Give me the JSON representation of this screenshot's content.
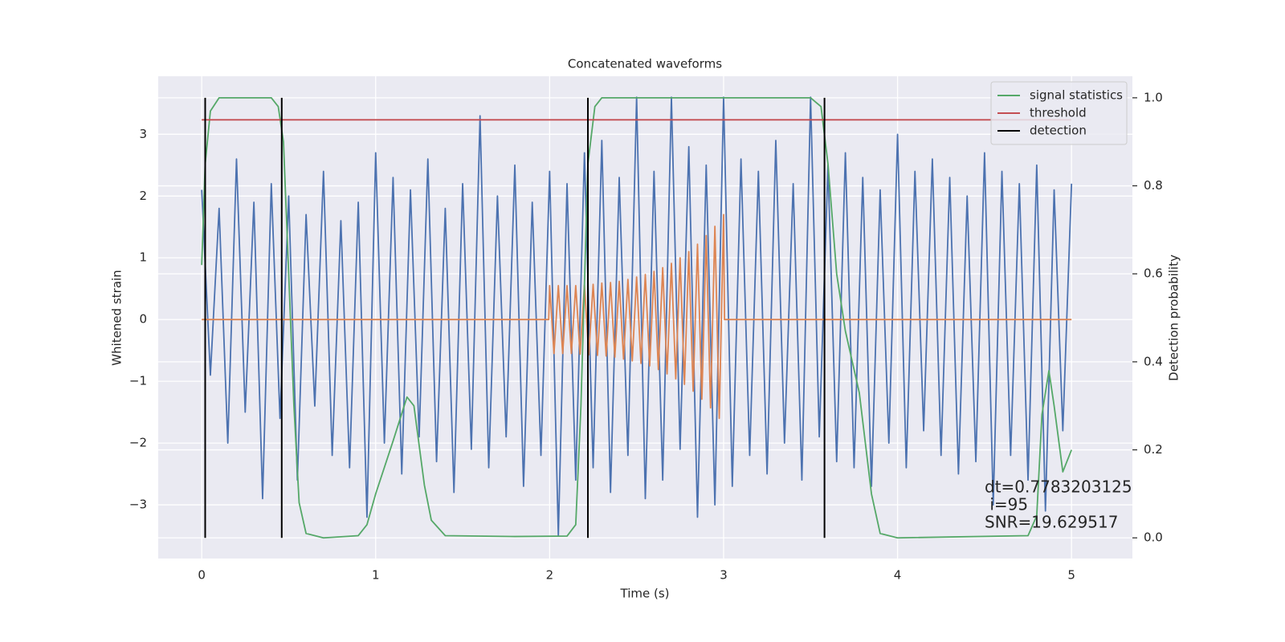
{
  "chart_data": {
    "type": "line",
    "title": "Concatenated waveforms",
    "xlabel": "Time (s)",
    "ylabel": "Whitened strain",
    "y2label": "Detection probability",
    "xlim": [
      -0.25,
      5.35
    ],
    "ylim": [
      -3.87,
      3.94
    ],
    "y2lim": [
      -0.047,
      1.049
    ],
    "xticks": [
      0,
      1,
      2,
      3,
      4,
      5
    ],
    "yticks": [
      {
        "value": -3,
        "label": "−3"
      },
      {
        "value": -2,
        "label": "−2"
      },
      {
        "value": -1,
        "label": "−1"
      },
      0,
      1,
      2,
      3
    ],
    "y2ticks": [
      {
        "value": 0,
        "label": "0.0"
      },
      {
        "value": 0.2,
        "label": "0.2"
      },
      {
        "value": 0.4,
        "label": "0.4"
      },
      {
        "value": 0.6,
        "label": "0.6"
      },
      {
        "value": 0.8,
        "label": "0.8"
      },
      {
        "value": 1,
        "label": "1.0"
      }
    ],
    "grid": true,
    "legend": "upper right",
    "series": [
      {
        "color": "#4c72b0",
        "x": [
          0,
          0.05,
          0.1,
          0.15,
          0.2,
          0.25,
          0.3,
          0.35,
          0.4,
          0.45,
          0.5,
          0.55,
          0.6,
          0.65,
          0.7,
          0.75,
          0.8,
          0.85,
          0.9,
          0.95,
          1,
          1.05,
          1.1,
          1.15,
          1.2,
          1.25,
          1.3,
          1.35,
          1.4,
          1.45,
          1.5,
          1.55,
          1.6,
          1.65,
          1.7,
          1.75,
          1.8,
          1.85,
          1.9,
          1.95,
          2,
          2.05,
          2.1,
          2.15,
          2.2,
          2.25,
          2.3,
          2.35,
          2.4,
          2.45,
          2.5,
          2.55,
          2.6,
          2.65,
          2.7,
          2.75,
          2.8,
          2.85,
          2.9,
          2.95,
          3,
          3.05,
          3.1,
          3.15,
          3.2,
          3.25,
          3.3,
          3.35,
          3.4,
          3.45,
          3.5,
          3.55,
          3.6,
          3.65,
          3.7,
          3.75,
          3.8,
          3.85,
          3.9,
          3.95,
          4,
          4.05,
          4.1,
          4.15,
          4.2,
          4.25,
          4.3,
          4.35,
          4.4,
          4.45,
          4.5,
          4.55,
          4.6,
          4.65,
          4.7,
          4.75,
          4.8,
          4.85,
          4.9,
          4.95,
          5
        ],
        "values": [
          2.1,
          -0.9,
          1.8,
          -2.0,
          2.6,
          -1.5,
          1.9,
          -2.9,
          2.2,
          -1.6,
          2.0,
          -2.6,
          1.7,
          -1.4,
          2.4,
          -2.2,
          1.6,
          -2.4,
          1.9,
          -3.2,
          2.7,
          -2.0,
          2.3,
          -2.5,
          2.1,
          -1.9,
          2.6,
          -2.3,
          1.8,
          -2.8,
          2.2,
          -2.1,
          3.3,
          -2.4,
          2.0,
          -1.9,
          2.5,
          -2.7,
          1.9,
          -2.2,
          2.4,
          -3.5,
          2.2,
          -2.6,
          2.7,
          -2.4,
          2.9,
          -2.8,
          2.3,
          -2.2,
          3.6,
          -2.9,
          2.4,
          -2.6,
          3.6,
          -2.1,
          2.8,
          -3.2,
          2.5,
          -3.0,
          3.6,
          -2.7,
          2.6,
          -2.2,
          2.4,
          -2.5,
          2.9,
          -2.0,
          2.2,
          -2.6,
          3.6,
          -1.9,
          2.5,
          -2.3,
          2.7,
          -2.4,
          2.3,
          -2.7,
          2.1,
          -2.0,
          3.0,
          -2.4,
          2.4,
          -1.8,
          2.6,
          -2.2,
          2.3,
          -2.5,
          2.0,
          -2.3,
          2.7,
          -3.0,
          2.4,
          -2.2,
          2.2,
          -2.6,
          2.5,
          -3.1,
          2.1,
          -1.8,
          2.2
        ]
      },
      {
        "color": "#dd8452",
        "x": [
          0,
          1.995,
          2,
          2.025,
          2.05,
          2.075,
          2.1,
          2.125,
          2.15,
          2.175,
          2.2,
          2.225,
          2.25,
          2.275,
          2.3,
          2.325,
          2.35,
          2.375,
          2.4,
          2.425,
          2.45,
          2.475,
          2.5,
          2.525,
          2.55,
          2.575,
          2.6,
          2.625,
          2.65,
          2.675,
          2.7,
          2.725,
          2.75,
          2.775,
          2.8,
          2.825,
          2.85,
          2.875,
          2.9,
          2.925,
          2.95,
          2.975,
          3,
          3.005,
          5
        ],
        "values": [
          0,
          0,
          0.55,
          -0.55,
          0.55,
          -0.55,
          0.55,
          -0.55,
          0.55,
          -0.56,
          0.56,
          -0.57,
          0.57,
          -0.58,
          0.59,
          -0.59,
          0.6,
          -0.61,
          0.62,
          -0.64,
          0.65,
          -0.67,
          0.69,
          -0.71,
          0.73,
          -0.75,
          0.78,
          -0.81,
          0.84,
          -0.88,
          0.91,
          -0.96,
          1.0,
          -1.05,
          1.1,
          -1.16,
          1.22,
          -1.29,
          1.36,
          -1.43,
          1.51,
          -1.6,
          1.7,
          0,
          0
        ]
      },
      {
        "name": "signal statistics",
        "color": "#55a868",
        "axis": "y2",
        "x": [
          0,
          0.02,
          0.05,
          0.1,
          0.4,
          0.44,
          0.47,
          0.5,
          0.53,
          0.56,
          0.6,
          0.7,
          0.9,
          0.95,
          1,
          1.1,
          1.18,
          1.22,
          1.28,
          1.32,
          1.4,
          1.8,
          2.1,
          2.15,
          2.18,
          2.22,
          2.26,
          2.3,
          3.5,
          3.56,
          3.6,
          3.65,
          3.7,
          3.78,
          3.85,
          3.9,
          4,
          4.75,
          4.8,
          4.83,
          4.87,
          4.9,
          4.95,
          5
        ],
        "values": [
          0.62,
          0.85,
          0.97,
          1.0,
          1.0,
          0.98,
          0.9,
          0.6,
          0.3,
          0.08,
          0.01,
          0,
          0.005,
          0.03,
          0.1,
          0.22,
          0.32,
          0.3,
          0.12,
          0.04,
          0.005,
          0.003,
          0.004,
          0.03,
          0.3,
          0.85,
          0.98,
          1.0,
          1.0,
          0.98,
          0.85,
          0.6,
          0.47,
          0.33,
          0.1,
          0.01,
          0,
          0.005,
          0.05,
          0.28,
          0.38,
          0.3,
          0.15,
          0.2
        ]
      },
      {
        "name": "threshold",
        "color": "#c44e52",
        "axis": "y2",
        "x": [
          0,
          5
        ],
        "values": [
          0.95,
          0.95
        ]
      },
      {
        "name": "detection",
        "color": "#000000",
        "axis": "y2",
        "style": "vlines",
        "x": [
          0.02,
          0.46,
          2.22,
          3.58
        ],
        "span": [
          0,
          1
        ]
      }
    ],
    "annotation": [
      "dt=0.7783203125",
      " i=95",
      "SNR=19.629517"
    ]
  }
}
